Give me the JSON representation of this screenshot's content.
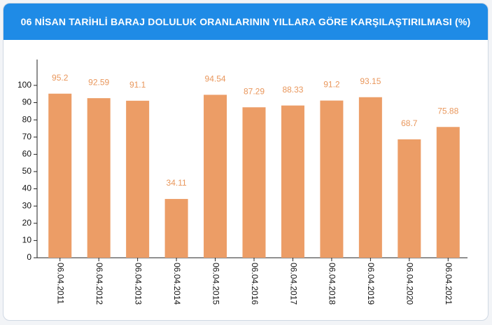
{
  "chart_data": {
    "type": "bar",
    "title": "06 NİSAN TARİHLİ BARAJ DOLULUK ORANLARININ YILLARA GÖRE KARŞILAŞTIRILMASI (%)",
    "categories": [
      "06.04.2011",
      "06.04.2012",
      "06.04.2013",
      "06.04.2014",
      "06.04.2015",
      "06.04.2016",
      "06.04.2017",
      "06.04.2018",
      "06.04.2019",
      "06.04.2020",
      "06.04.2021"
    ],
    "values": [
      95.2,
      92.59,
      91.1,
      34.11,
      94.54,
      87.29,
      88.33,
      91.2,
      93.15,
      68.7,
      75.88
    ],
    "color": "#ec9d66",
    "ylim": [
      0,
      115
    ],
    "yticks": [
      0,
      10,
      20,
      30,
      40,
      50,
      60,
      70,
      80,
      90,
      100
    ],
    "grid": false
  }
}
